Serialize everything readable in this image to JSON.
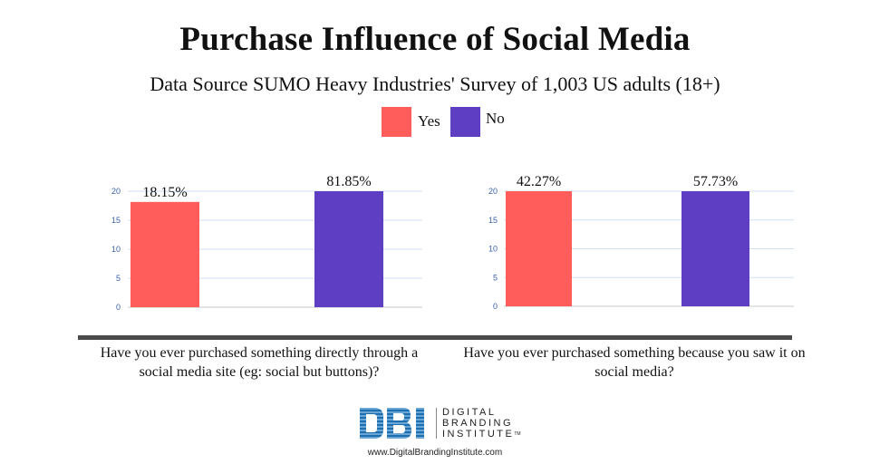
{
  "title": "Purchase Influence of Social Media",
  "subtitle": "Data Source SUMO Heavy Industries' Survey of 1,003 US adults (18+)",
  "legend": [
    {
      "label": "Yes",
      "color": "#ff5c5c"
    },
    {
      "label": "No",
      "color": "#5e3ec2"
    }
  ],
  "chart_data": [
    {
      "type": "bar",
      "categories": [
        "Yes",
        "No"
      ],
      "values": [
        18.15,
        81.85
      ],
      "value_labels": [
        "18.15%",
        "81.85%"
      ],
      "yticks": [
        0,
        5,
        10,
        15,
        20
      ],
      "ylim": [
        0,
        20
      ],
      "grid": true,
      "xlabel": "Have you ever purchased something directly through a social media site (eg: social but buttons)?"
    },
    {
      "type": "bar",
      "categories": [
        "Yes",
        "No"
      ],
      "values": [
        42.27,
        57.73
      ],
      "value_labels": [
        "42.27%",
        "57.73%"
      ],
      "yticks": [
        0,
        5,
        10,
        15,
        20
      ],
      "ylim": [
        0,
        20
      ],
      "grid": true,
      "xlabel": "Have you ever purchased something because you saw it on social media?"
    }
  ],
  "logo": {
    "lines": [
      "DIGITAL",
      "BRANDING",
      "INSTITUTE"
    ],
    "tm": "TM",
    "url": "www.DigitalBrandingInstitute.com"
  }
}
